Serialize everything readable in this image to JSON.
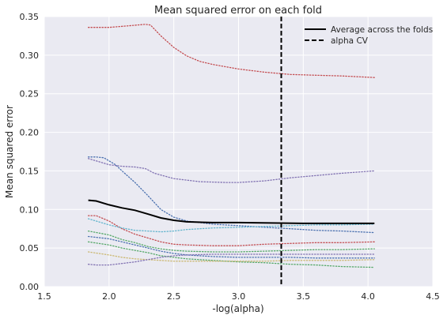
{
  "chart_data": {
    "type": "line",
    "title": "Mean squared error on each fold",
    "xlabel": "-log(alpha)",
    "ylabel": "Mean squared error",
    "xlim": [
      1.5,
      4.5
    ],
    "ylim": [
      0.0,
      0.35
    ],
    "xticks": [
      "1.5",
      "2.0",
      "2.5",
      "3.0",
      "3.5",
      "4.0",
      "4.5"
    ],
    "yticks": [
      "0.00",
      "0.05",
      "0.10",
      "0.15",
      "0.20",
      "0.25",
      "0.30",
      "0.35"
    ],
    "grid": true,
    "legend_placement": "top-right",
    "legend": [
      {
        "label": "Average across the folds",
        "style": "solid"
      },
      {
        "label": "alpha CV",
        "style": "dashed"
      }
    ],
    "alpha_cv": 3.33,
    "average": {
      "color": "#000000",
      "points": [
        [
          1.84,
          0.112
        ],
        [
          1.9,
          0.111
        ],
        [
          2.0,
          0.106
        ],
        [
          2.1,
          0.102
        ],
        [
          2.2,
          0.099
        ],
        [
          2.3,
          0.094
        ],
        [
          2.4,
          0.089
        ],
        [
          2.5,
          0.086
        ],
        [
          2.6,
          0.084
        ],
        [
          2.8,
          0.083
        ],
        [
          3.0,
          0.083
        ],
        [
          3.5,
          0.082
        ],
        [
          4.05,
          0.082
        ]
      ]
    },
    "series": [
      {
        "color": "#c44e52",
        "points": [
          [
            1.84,
            0.336
          ],
          [
            2.0,
            0.336
          ],
          [
            2.15,
            0.338
          ],
          [
            2.28,
            0.34
          ],
          [
            2.32,
            0.339
          ],
          [
            2.4,
            0.325
          ],
          [
            2.5,
            0.31
          ],
          [
            2.6,
            0.299
          ],
          [
            2.7,
            0.292
          ],
          [
            2.8,
            0.288
          ],
          [
            2.9,
            0.285
          ],
          [
            3.0,
            0.282
          ],
          [
            3.2,
            0.278
          ],
          [
            3.4,
            0.275
          ],
          [
            3.6,
            0.274
          ],
          [
            3.8,
            0.273
          ],
          [
            4.05,
            0.271
          ]
        ]
      },
      {
        "color": "#4c72b0",
        "points": [
          [
            1.84,
            0.168
          ],
          [
            1.9,
            0.168
          ],
          [
            1.96,
            0.167
          ],
          [
            2.05,
            0.158
          ],
          [
            2.1,
            0.15
          ],
          [
            2.2,
            0.135
          ],
          [
            2.3,
            0.118
          ],
          [
            2.4,
            0.1
          ],
          [
            2.5,
            0.09
          ],
          [
            2.6,
            0.085
          ],
          [
            2.8,
            0.081
          ],
          [
            3.0,
            0.079
          ],
          [
            3.2,
            0.077
          ],
          [
            3.4,
            0.075
          ],
          [
            3.6,
            0.073
          ],
          [
            3.8,
            0.072
          ],
          [
            4.05,
            0.07
          ]
        ]
      },
      {
        "color": "#8172b2",
        "points": [
          [
            1.84,
            0.166
          ],
          [
            2.0,
            0.158
          ],
          [
            2.1,
            0.156
          ],
          [
            2.2,
            0.155
          ],
          [
            2.28,
            0.153
          ],
          [
            2.35,
            0.147
          ],
          [
            2.5,
            0.14
          ],
          [
            2.7,
            0.136
          ],
          [
            2.9,
            0.135
          ],
          [
            3.0,
            0.135
          ],
          [
            3.2,
            0.137
          ],
          [
            3.4,
            0.141
          ],
          [
            3.6,
            0.144
          ],
          [
            3.8,
            0.147
          ],
          [
            4.05,
            0.15
          ]
        ]
      },
      {
        "color": "#c44e52",
        "points": [
          [
            1.84,
            0.092
          ],
          [
            1.9,
            0.092
          ],
          [
            2.0,
            0.085
          ],
          [
            2.1,
            0.075
          ],
          [
            2.2,
            0.068
          ],
          [
            2.3,
            0.063
          ],
          [
            2.4,
            0.058
          ],
          [
            2.5,
            0.055
          ],
          [
            2.6,
            0.054
          ],
          [
            2.8,
            0.053
          ],
          [
            3.0,
            0.053
          ],
          [
            3.2,
            0.055
          ],
          [
            3.4,
            0.056
          ],
          [
            3.6,
            0.057
          ],
          [
            3.8,
            0.057
          ],
          [
            4.05,
            0.058
          ]
        ]
      },
      {
        "color": "#64b5cd",
        "points": [
          [
            1.84,
            0.088
          ],
          [
            2.0,
            0.08
          ],
          [
            2.1,
            0.076
          ],
          [
            2.2,
            0.073
          ],
          [
            2.3,
            0.072
          ],
          [
            2.4,
            0.071
          ],
          [
            2.5,
            0.072
          ],
          [
            2.6,
            0.074
          ],
          [
            2.8,
            0.076
          ],
          [
            3.0,
            0.077
          ],
          [
            3.2,
            0.078
          ],
          [
            3.4,
            0.079
          ],
          [
            3.6,
            0.08
          ],
          [
            3.8,
            0.08
          ],
          [
            4.05,
            0.081
          ]
        ]
      },
      {
        "color": "#55a868",
        "points": [
          [
            1.84,
            0.072
          ],
          [
            2.0,
            0.067
          ],
          [
            2.1,
            0.061
          ],
          [
            2.2,
            0.057
          ],
          [
            2.3,
            0.052
          ],
          [
            2.4,
            0.049
          ],
          [
            2.5,
            0.047
          ],
          [
            2.6,
            0.046
          ],
          [
            2.8,
            0.045
          ],
          [
            3.0,
            0.045
          ],
          [
            3.2,
            0.046
          ],
          [
            3.4,
            0.047
          ],
          [
            3.6,
            0.048
          ],
          [
            3.8,
            0.048
          ],
          [
            4.05,
            0.049
          ]
        ]
      },
      {
        "color": "#4c72b0",
        "points": [
          [
            1.84,
            0.065
          ],
          [
            2.0,
            0.062
          ],
          [
            2.1,
            0.058
          ],
          [
            2.2,
            0.054
          ],
          [
            2.3,
            0.05
          ],
          [
            2.4,
            0.046
          ],
          [
            2.5,
            0.043
          ],
          [
            2.6,
            0.041
          ],
          [
            2.8,
            0.039
          ],
          [
            3.0,
            0.038
          ],
          [
            3.2,
            0.038
          ],
          [
            3.4,
            0.038
          ],
          [
            3.6,
            0.037
          ],
          [
            3.8,
            0.037
          ],
          [
            4.05,
            0.037
          ]
        ]
      },
      {
        "color": "#55a868",
        "points": [
          [
            1.84,
            0.058
          ],
          [
            2.0,
            0.054
          ],
          [
            2.1,
            0.05
          ],
          [
            2.2,
            0.047
          ],
          [
            2.3,
            0.044
          ],
          [
            2.4,
            0.04
          ],
          [
            2.5,
            0.038
          ],
          [
            2.6,
            0.036
          ],
          [
            2.8,
            0.034
          ],
          [
            3.0,
            0.032
          ],
          [
            3.2,
            0.031
          ],
          [
            3.4,
            0.029
          ],
          [
            3.6,
            0.028
          ],
          [
            3.8,
            0.026
          ],
          [
            4.05,
            0.025
          ]
        ]
      },
      {
        "color": "#ccb974",
        "points": [
          [
            1.84,
            0.045
          ],
          [
            2.0,
            0.041
          ],
          [
            2.1,
            0.038
          ],
          [
            2.2,
            0.036
          ],
          [
            2.3,
            0.035
          ],
          [
            2.4,
            0.034
          ],
          [
            2.5,
            0.033
          ],
          [
            2.6,
            0.033
          ],
          [
            2.8,
            0.033
          ],
          [
            3.0,
            0.033
          ],
          [
            3.2,
            0.033
          ],
          [
            3.4,
            0.034
          ],
          [
            3.6,
            0.034
          ],
          [
            3.8,
            0.034
          ],
          [
            4.05,
            0.035
          ]
        ]
      },
      {
        "color": "#8172b2",
        "points": [
          [
            1.84,
            0.029
          ],
          [
            1.9,
            0.028
          ],
          [
            2.0,
            0.028
          ],
          [
            2.1,
            0.03
          ],
          [
            2.2,
            0.032
          ],
          [
            2.3,
            0.035
          ],
          [
            2.4,
            0.038
          ],
          [
            2.5,
            0.04
          ],
          [
            2.6,
            0.041
          ],
          [
            2.8,
            0.042
          ],
          [
            3.0,
            0.042
          ],
          [
            3.2,
            0.042
          ],
          [
            3.4,
            0.042
          ],
          [
            3.6,
            0.042
          ],
          [
            3.8,
            0.042
          ],
          [
            4.05,
            0.042
          ]
        ]
      }
    ]
  }
}
